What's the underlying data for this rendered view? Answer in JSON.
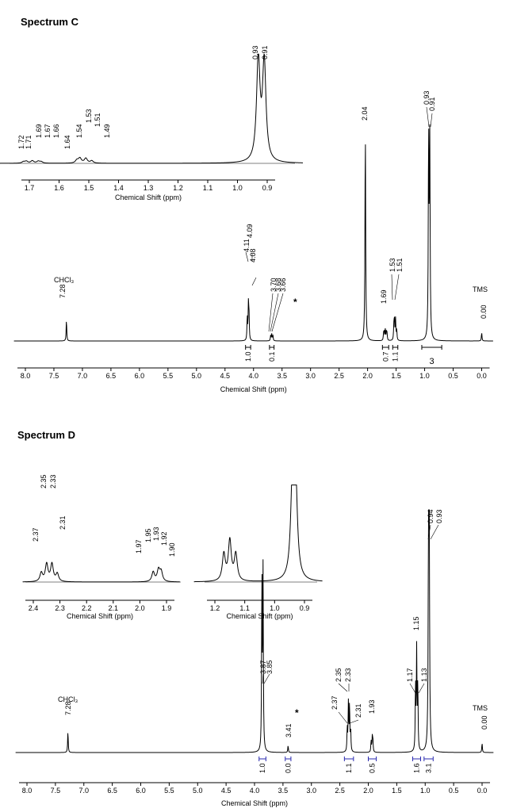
{
  "colors": {
    "trace": "#000000",
    "integral_blue": "#2a2ab0"
  },
  "chart_data": [
    {
      "name": "Spectrum C",
      "title": "Spectrum C",
      "type": "line",
      "xlabel": "Chemical Shift (ppm)",
      "xlim": [
        8.0,
        0.0
      ],
      "x_ticks": [
        "8.0",
        "7.5",
        "7.0",
        "6.5",
        "6.0",
        "5.5",
        "5.0",
        "4.5",
        "4.0",
        "3.5",
        "3.0",
        "2.5",
        "2.0",
        "1.5",
        "1.0",
        "0.5",
        "0.0"
      ],
      "peaks": [
        {
          "ppm": 7.28,
          "h": 0.1,
          "w": 0.006
        },
        {
          "ppm": 4.11,
          "h": 0.11,
          "w": 0.006
        },
        {
          "ppm": 4.09,
          "h": 0.16,
          "w": 0.006
        },
        {
          "ppm": 4.08,
          "h": 0.12,
          "w": 0.006
        },
        {
          "ppm": 3.7,
          "h": 0.025,
          "w": 0.006
        },
        {
          "ppm": 3.68,
          "h": 0.035,
          "w": 0.006
        },
        {
          "ppm": 3.66,
          "h": 0.025,
          "w": 0.006
        },
        {
          "ppm": 2.04,
          "h": 1.0,
          "w": 0.007
        },
        {
          "ppm": 1.72,
          "h": 0.03,
          "w": 0.006
        },
        {
          "ppm": 1.71,
          "h": 0.04,
          "w": 0.006
        },
        {
          "ppm": 1.69,
          "h": 0.05,
          "w": 0.006
        },
        {
          "ppm": 1.67,
          "h": 0.04,
          "w": 0.006
        },
        {
          "ppm": 1.66,
          "h": 0.03,
          "w": 0.006
        },
        {
          "ppm": 1.54,
          "h": 0.06,
          "w": 0.006
        },
        {
          "ppm": 1.53,
          "h": 0.1,
          "w": 0.006
        },
        {
          "ppm": 1.51,
          "h": 0.1,
          "w": 0.006
        },
        {
          "ppm": 1.49,
          "h": 0.05,
          "w": 0.006
        },
        {
          "ppm": 0.93,
          "h": 0.95,
          "w": 0.007
        },
        {
          "ppm": 0.91,
          "h": 0.92,
          "w": 0.007
        },
        {
          "ppm": 0.0,
          "h": 0.04,
          "w": 0.006
        }
      ],
      "labels": [
        {
          "ppm": 7.28,
          "texts": [
            "7.28"
          ]
        },
        {
          "ppm": 4.09,
          "texts": [
            "4.11",
            "4.09",
            "4.08"
          ]
        },
        {
          "ppm": 3.68,
          "texts": [
            "3.70",
            "3.68",
            "3.66"
          ]
        },
        {
          "ppm": 2.04,
          "texts": [
            "2.04"
          ]
        },
        {
          "ppm": 1.69,
          "texts": [
            "1.69"
          ]
        },
        {
          "ppm": 1.52,
          "texts": [
            "1.53",
            "1.51"
          ]
        },
        {
          "ppm": 0.92,
          "texts": [
            "0.93",
            "0.91"
          ]
        },
        {
          "ppm": 0.0,
          "texts": [
            "0.00"
          ]
        }
      ],
      "annotations": [
        {
          "ppm": 7.38,
          "text": "CHCl₃"
        },
        {
          "ppm": 0.0,
          "text": "TMS"
        },
        {
          "ppm": 3.6,
          "text": "*"
        }
      ],
      "integrals": [
        {
          "from": 4.14,
          "to": 4.05,
          "value": "1.0"
        },
        {
          "from": 3.72,
          "to": 3.64,
          "value": "0.1"
        },
        {
          "from": 1.74,
          "to": 1.63,
          "value": "0.7"
        },
        {
          "from": 1.56,
          "to": 1.47,
          "value": "1.1"
        },
        {
          "from": 1.05,
          "to": 0.7,
          "value": "3"
        }
      ],
      "insets": [
        {
          "xlim": [
            1.78,
            0.8
          ],
          "x_ticks": [
            "1.7",
            "1.6",
            "1.5",
            "1.4",
            "1.3",
            "1.2",
            "1.1",
            "1.0",
            "0.9"
          ],
          "xlabel": "Chemical Shift (ppm)",
          "peak_labels": [
            "1.72",
            "1.71",
            "1.69",
            "1.67",
            "1.66",
            "1.64",
            "1.54",
            "1.53",
            "1.51",
            "1.49",
            "0.93",
            "0.91"
          ]
        }
      ]
    },
    {
      "name": "Spectrum D",
      "title": "Spectrum D",
      "type": "line",
      "xlabel": "Chemical Shift (ppm)",
      "xlim": [
        8.0,
        0.0
      ],
      "x_ticks": [
        "8.0",
        "7.5",
        "7.0",
        "6.5",
        "6.0",
        "5.5",
        "5.0",
        "4.5",
        "4.0",
        "3.5",
        "3.0",
        "2.5",
        "2.0",
        "1.5",
        "1.0",
        "0.5",
        "0.0"
      ],
      "peaks": [
        {
          "ppm": 7.28,
          "h": 0.09,
          "w": 0.006
        },
        {
          "ppm": 3.87,
          "h": 0.75,
          "w": 0.006
        },
        {
          "ppm": 3.85,
          "h": 0.75,
          "w": 0.006
        },
        {
          "ppm": 3.41,
          "h": 0.03,
          "w": 0.006
        },
        {
          "ppm": 2.37,
          "h": 0.1,
          "w": 0.006
        },
        {
          "ppm": 2.35,
          "h": 0.2,
          "w": 0.006
        },
        {
          "ppm": 2.33,
          "h": 0.2,
          "w": 0.006
        },
        {
          "ppm": 2.31,
          "h": 0.09,
          "w": 0.006
        },
        {
          "ppm": 1.95,
          "h": 0.05,
          "w": 0.006
        },
        {
          "ppm": 1.93,
          "h": 0.06,
          "w": 0.006
        },
        {
          "ppm": 1.92,
          "h": 0.05,
          "w": 0.006
        },
        {
          "ppm": 1.17,
          "h": 0.28,
          "w": 0.006
        },
        {
          "ppm": 1.15,
          "h": 0.42,
          "w": 0.006
        },
        {
          "ppm": 1.13,
          "h": 0.28,
          "w": 0.006
        },
        {
          "ppm": 0.94,
          "h": 1.0,
          "w": 0.007
        },
        {
          "ppm": 0.93,
          "h": 1.0,
          "w": 0.007
        },
        {
          "ppm": 0.0,
          "h": 0.04,
          "w": 0.006
        }
      ],
      "labels": [
        {
          "ppm": 7.28,
          "texts": [
            "7.28"
          ]
        },
        {
          "ppm": 3.86,
          "texts": [
            "3.87",
            "3.85"
          ]
        },
        {
          "ppm": 3.41,
          "texts": [
            "3.41"
          ]
        },
        {
          "ppm": 2.34,
          "texts": [
            "2.35",
            "2.33"
          ]
        },
        {
          "ppm": 2.34,
          "texts": [
            "2.37",
            "2.31"
          ]
        },
        {
          "ppm": 1.93,
          "texts": [
            "1.93"
          ]
        },
        {
          "ppm": 1.15,
          "texts": [
            "1.17",
            "1.15",
            "1.13"
          ]
        },
        {
          "ppm": 0.935,
          "texts": [
            "0.94",
            "0.93"
          ]
        },
        {
          "ppm": 0.0,
          "texts": [
            "0.00"
          ]
        }
      ],
      "annotations": [
        {
          "ppm": 7.38,
          "text": "CHCl₃"
        },
        {
          "ppm": 0.0,
          "text": "TMS"
        },
        {
          "ppm": 3.3,
          "text": "*"
        }
      ],
      "integrals": [
        {
          "from": 3.92,
          "to": 3.8,
          "value": "1.0"
        },
        {
          "from": 3.46,
          "to": 3.36,
          "value": "0.0"
        },
        {
          "from": 2.42,
          "to": 2.26,
          "value": "1.1"
        },
        {
          "from": 2.0,
          "to": 1.86,
          "value": "0.5"
        },
        {
          "from": 1.22,
          "to": 1.08,
          "value": "1.6"
        },
        {
          "from": 1.02,
          "to": 0.86,
          "value": "3.1"
        }
      ],
      "insets": [
        {
          "xlim": [
            2.43,
            1.86
          ],
          "x_ticks": [
            "2.4",
            "2.3",
            "2.2",
            "2.1",
            "2.0",
            "1.9"
          ],
          "xlabel": "Chemical Shift (ppm)",
          "peak_labels": [
            "2.37",
            "2.35",
            "2.33",
            "2.31",
            "1.97",
            "1.95",
            "1.93",
            "1.92",
            "1.90"
          ]
        },
        {
          "xlim": [
            1.27,
            0.85
          ],
          "x_ticks": [
            "1.2",
            "1.1",
            "1.0",
            "0.9"
          ],
          "xlabel": "Chemical Shift (ppm)",
          "peak_labels": []
        }
      ]
    }
  ]
}
